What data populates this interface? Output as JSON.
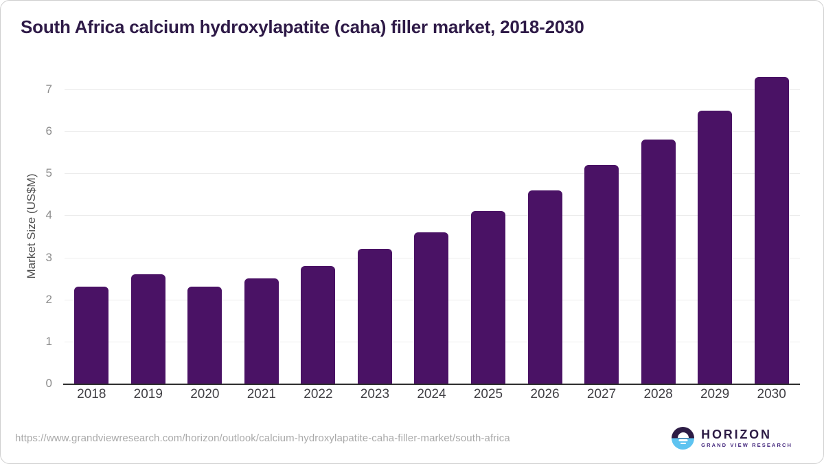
{
  "title": "South Africa calcium hydroxylapatite (caha) filler market, 2018-2030",
  "chart_data": {
    "type": "bar",
    "categories": [
      "2018",
      "2019",
      "2020",
      "2021",
      "2022",
      "2023",
      "2024",
      "2025",
      "2026",
      "2027",
      "2028",
      "2029",
      "2030"
    ],
    "values": [
      2.3,
      2.6,
      2.3,
      2.5,
      2.8,
      3.2,
      3.6,
      4.1,
      4.6,
      5.2,
      5.8,
      6.5,
      7.3
    ],
    "title": "South Africa calcium hydroxylapatite (caha) filler market, 2018-2030",
    "xlabel": "",
    "ylabel": "Market Size (US$M)",
    "ylim": [
      0,
      7.5
    ],
    "yticks": [
      0,
      1,
      2,
      3,
      4,
      5,
      6,
      7
    ],
    "grid": "horizontal-only",
    "legend": false,
    "bar_corner": "rounded-top"
  },
  "footer": {
    "source_url": "https://www.grandviewresearch.com/horizon/outlook/calcium-hydroxylapatite-caha-filler-market/south-africa",
    "logo_brand": "HORIZON",
    "logo_tagline": "GRAND VIEW RESEARCH",
    "logo_icon": "horizon-sun-over-water-icon"
  },
  "colors": {
    "bar": "#4a1265",
    "title_text": "#2e1a47",
    "axis_tick_text": "#8c8c8c",
    "x_tick_text": "#403f44",
    "gridline": "#ececec",
    "axis_line": "#2e2e2e",
    "url_text": "#a9a9a9",
    "logo_dark_purple": "#2d1c45",
    "logo_sky_blue": "#5ec3f0",
    "card_border": "#cfcfcf"
  }
}
